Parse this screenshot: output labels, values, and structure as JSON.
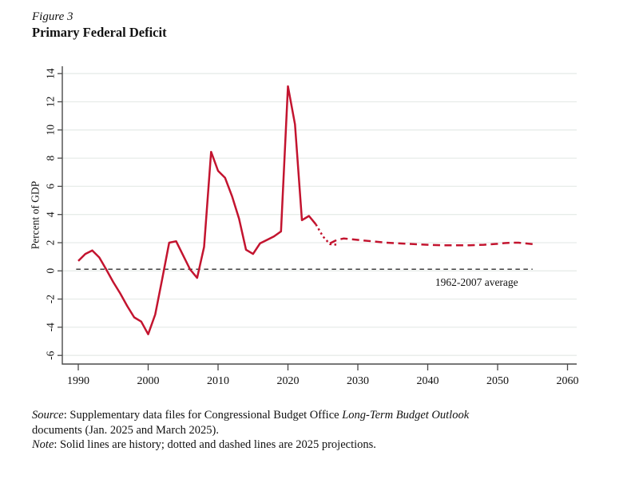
{
  "figure": {
    "label": "Figure 3",
    "title": "Primary Federal Deficit"
  },
  "footer": {
    "source_word": "Source",
    "source_rest": ": Supplementary data files for Congressional Budget Office ",
    "source_italic": "Long-Term Budget Outlook",
    "source_line2": "documents (Jan. 2025 and March 2025).",
    "note_word": "Note",
    "note_rest": ": Solid lines are history; dotted and dashed lines are 2025 projections."
  },
  "chart_data": {
    "type": "line",
    "title": "Primary Federal Deficit",
    "xlabel": "",
    "ylabel": "Percent of GDP",
    "xlim": [
      1987.7,
      2061.5
    ],
    "ylim": [
      -6.6,
      14.5
    ],
    "xticks": [
      1990,
      2000,
      2010,
      2020,
      2030,
      2040,
      2050,
      2060
    ],
    "yticks": [
      -6,
      -4,
      -2,
      0,
      2,
      4,
      6,
      8,
      10,
      12,
      14
    ],
    "grid": "horizontal-light",
    "legend": "none",
    "reference_line": {
      "label": "1962-2007 average",
      "value": 0.12,
      "from_year": 1989.7,
      "to_year": 2055,
      "style": "dashed",
      "color": "#000000",
      "label_year": 2047,
      "label_value": -1.05
    },
    "series": [
      {
        "name": "history",
        "style": "solid",
        "color": "#c3142f",
        "points": [
          [
            1990,
            0.7
          ],
          [
            1991,
            1.2
          ],
          [
            1992,
            1.45
          ],
          [
            1993,
            0.95
          ],
          [
            1994,
            0.1
          ],
          [
            1995,
            -0.8
          ],
          [
            1996,
            -1.6
          ],
          [
            1997,
            -2.5
          ],
          [
            1998,
            -3.3
          ],
          [
            1999,
            -3.6
          ],
          [
            2000,
            -4.5
          ],
          [
            2001,
            -3.1
          ],
          [
            2002,
            -0.6
          ],
          [
            2003,
            2.0
          ],
          [
            2004,
            2.1
          ],
          [
            2005,
            1.1
          ],
          [
            2006,
            0.1
          ],
          [
            2007,
            -0.5
          ],
          [
            2008,
            1.7
          ],
          [
            2009,
            8.45
          ],
          [
            2010,
            7.1
          ],
          [
            2011,
            6.6
          ],
          [
            2012,
            5.3
          ],
          [
            2013,
            3.7
          ],
          [
            2014,
            1.5
          ],
          [
            2015,
            1.2
          ],
          [
            2016,
            1.95
          ],
          [
            2017,
            2.2
          ],
          [
            2018,
            2.45
          ],
          [
            2019,
            2.8
          ],
          [
            2020,
            13.1
          ],
          [
            2021,
            10.4
          ],
          [
            2022,
            3.6
          ],
          [
            2023,
            3.9
          ],
          [
            2024,
            3.3
          ]
        ]
      },
      {
        "name": "projection-2025-dotted",
        "style": "dotted",
        "color": "#c3142f",
        "points": [
          [
            2024,
            3.3
          ],
          [
            2025,
            2.45
          ],
          [
            2026,
            1.9
          ],
          [
            2027,
            1.85
          ]
        ]
      },
      {
        "name": "projection-2025-dashed",
        "style": "dashed",
        "color": "#c3142f",
        "points": [
          [
            2026,
            1.95
          ],
          [
            2027,
            2.2
          ],
          [
            2028,
            2.3
          ],
          [
            2029,
            2.25
          ],
          [
            2030,
            2.2
          ],
          [
            2032,
            2.1
          ],
          [
            2034,
            2.0
          ],
          [
            2036,
            1.95
          ],
          [
            2038,
            1.9
          ],
          [
            2040,
            1.85
          ],
          [
            2042,
            1.82
          ],
          [
            2044,
            1.82
          ],
          [
            2046,
            1.82
          ],
          [
            2048,
            1.85
          ],
          [
            2050,
            1.92
          ],
          [
            2051,
            1.97
          ],
          [
            2052,
            2.0
          ],
          [
            2053,
            2.0
          ],
          [
            2054,
            1.95
          ],
          [
            2055,
            1.9
          ]
        ]
      }
    ]
  },
  "colors": {
    "line_red": "#c3142f",
    "grid": "#e7ece9",
    "axis": "#4a4a4a",
    "text": "#111111",
    "background": "#ffffff"
  }
}
